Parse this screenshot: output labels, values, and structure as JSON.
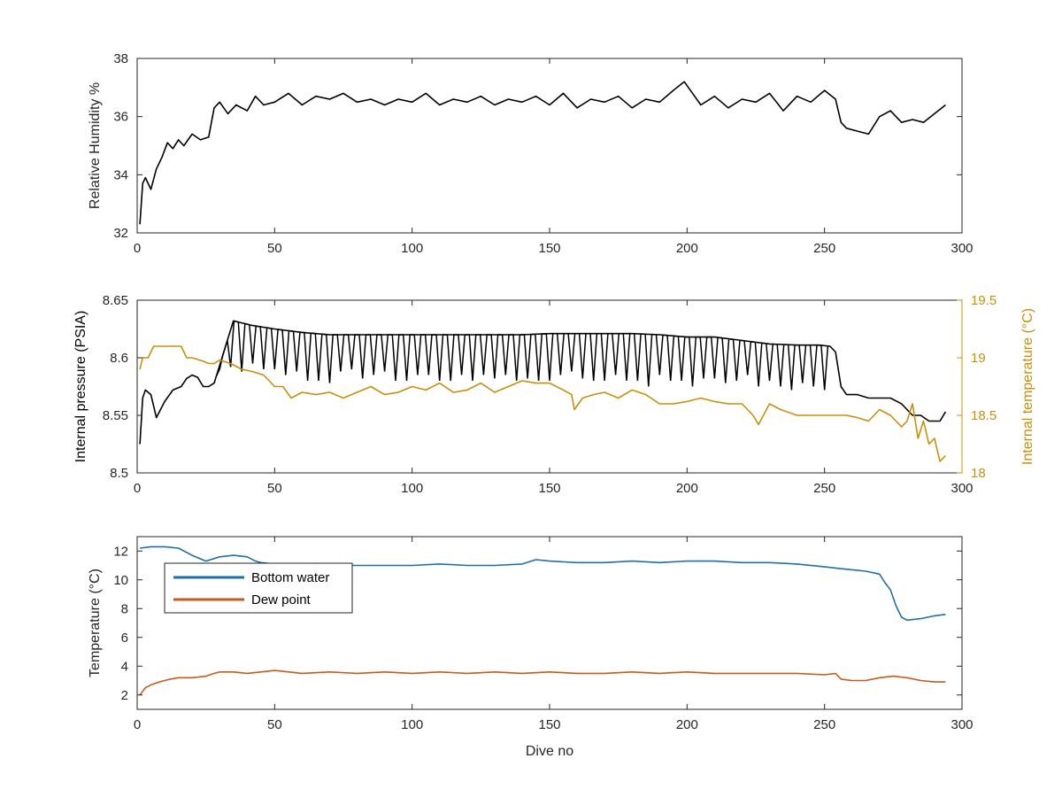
{
  "chart_data": [
    {
      "type": "line",
      "xlabel": "",
      "ylabel": "Relative Humidity %",
      "xlim": [
        0,
        300
      ],
      "ylim": [
        32,
        38
      ],
      "xticks": [
        0,
        50,
        100,
        150,
        200,
        250,
        300
      ],
      "yticks": [
        32,
        34,
        36,
        38
      ],
      "grid": false,
      "series": [
        {
          "color": "#000000",
          "x": [
            1,
            2,
            3,
            5,
            7,
            9,
            11,
            13,
            15,
            17,
            20,
            23,
            26,
            28,
            30,
            33,
            36,
            40,
            43,
            46,
            50,
            55,
            60,
            65,
            70,
            75,
            80,
            85,
            90,
            95,
            100,
            105,
            110,
            115,
            120,
            125,
            130,
            135,
            140,
            145,
            150,
            155,
            160,
            165,
            170,
            175,
            180,
            185,
            190,
            195,
            199,
            205,
            210,
            215,
            220,
            225,
            230,
            235,
            240,
            245,
            250,
            254,
            256,
            258,
            262,
            266,
            270,
            274,
            278,
            282,
            286,
            290,
            294
          ],
          "values": [
            32.3,
            33.7,
            33.9,
            33.5,
            34.2,
            34.6,
            35.1,
            34.9,
            35.2,
            35.0,
            35.4,
            35.2,
            35.3,
            36.3,
            36.5,
            36.1,
            36.4,
            36.2,
            36.7,
            36.4,
            36.5,
            36.8,
            36.4,
            36.7,
            36.6,
            36.8,
            36.5,
            36.6,
            36.4,
            36.6,
            36.5,
            36.8,
            36.4,
            36.6,
            36.5,
            36.7,
            36.4,
            36.6,
            36.5,
            36.7,
            36.4,
            36.8,
            36.3,
            36.6,
            36.5,
            36.7,
            36.3,
            36.6,
            36.5,
            36.9,
            37.2,
            36.4,
            36.7,
            36.3,
            36.6,
            36.5,
            36.8,
            36.2,
            36.7,
            36.5,
            36.9,
            36.6,
            35.8,
            35.6,
            35.5,
            35.4,
            36.0,
            36.2,
            35.8,
            35.9,
            35.8,
            36.1,
            36.4
          ]
        }
      ]
    },
    {
      "type": "line",
      "xlabel": "",
      "ylabel": "Internal pressure (PSIA)",
      "ylabel_right": "Internal temperature (°C)",
      "xlim": [
        0,
        300
      ],
      "ylim": [
        8.5,
        8.65
      ],
      "ylim_right": [
        18,
        19.5
      ],
      "xticks": [
        0,
        50,
        100,
        150,
        200,
        250,
        300
      ],
      "yticks": [
        8.5,
        8.55,
        8.6,
        8.65
      ],
      "yticks_right": [
        18,
        18.5,
        19,
        19.5
      ],
      "grid": false,
      "series": [
        {
          "axis": "left",
          "color": "#000000",
          "x": [
            1,
            2,
            3,
            5,
            7,
            10,
            13,
            16,
            18,
            20,
            22,
            24,
            26,
            28,
            35,
            42,
            50,
            60,
            70,
            80,
            90,
            100,
            110,
            120,
            130,
            140,
            150,
            160,
            170,
            180,
            190,
            200,
            210,
            220,
            230,
            240,
            248,
            252,
            254,
            256,
            258,
            262,
            266,
            270,
            274,
            278,
            282,
            285,
            288,
            292,
            294
          ],
          "values": [
            8.525,
            8.565,
            8.572,
            8.568,
            8.548,
            8.562,
            8.572,
            8.575,
            8.582,
            8.585,
            8.583,
            8.575,
            8.575,
            8.578,
            8.632,
            8.628,
            8.625,
            8.622,
            8.62,
            8.62,
            8.62,
            8.62,
            8.62,
            8.62,
            8.62,
            8.62,
            8.621,
            8.621,
            8.621,
            8.621,
            8.62,
            8.618,
            8.618,
            8.615,
            8.612,
            8.611,
            8.611,
            8.61,
            8.605,
            8.575,
            8.568,
            8.568,
            8.565,
            8.565,
            8.565,
            8.56,
            8.55,
            8.55,
            8.545,
            8.545,
            8.553
          ]
        },
        {
          "axis": "left",
          "name_hidden": true,
          "color": "#000000",
          "dip_series": true,
          "x": [
            30,
            34,
            38,
            42,
            46,
            50,
            54,
            58,
            62,
            66,
            70,
            74,
            78,
            82,
            86,
            90,
            94,
            98,
            102,
            106,
            110,
            114,
            118,
            122,
            126,
            130,
            134,
            138,
            142,
            146,
            150,
            154,
            158,
            162,
            166,
            170,
            174,
            178,
            182,
            186,
            190,
            194,
            198,
            202,
            206,
            210,
            214,
            218,
            222,
            226,
            230,
            234,
            238,
            242,
            246,
            250
          ],
          "values": [
            8.59,
            8.592,
            8.588,
            8.595,
            8.59,
            8.59,
            8.585,
            8.588,
            8.58,
            8.58,
            8.578,
            8.588,
            8.59,
            8.582,
            8.585,
            8.588,
            8.58,
            8.58,
            8.585,
            8.585,
            8.58,
            8.58,
            8.585,
            8.58,
            8.585,
            8.582,
            8.585,
            8.58,
            8.582,
            8.58,
            8.58,
            8.585,
            8.588,
            8.582,
            8.58,
            8.58,
            8.585,
            8.58,
            8.58,
            8.575,
            8.585,
            8.58,
            8.58,
            8.575,
            8.582,
            8.582,
            8.578,
            8.58,
            8.585,
            8.575,
            8.58,
            8.575,
            8.572,
            8.578,
            8.575,
            8.572
          ]
        },
        {
          "axis": "right",
          "color": "#c8900a",
          "x": [
            1,
            2,
            4,
            6,
            8,
            12,
            16,
            18,
            20,
            24,
            26,
            28,
            30,
            34,
            38,
            42,
            46,
            48,
            50,
            53,
            56,
            60,
            65,
            70,
            75,
            80,
            85,
            90,
            95,
            100,
            105,
            110,
            115,
            120,
            125,
            130,
            135,
            140,
            145,
            150,
            155,
            158,
            159,
            162,
            166,
            170,
            175,
            180,
            185,
            190,
            195,
            200,
            205,
            210,
            215,
            220,
            224,
            226,
            230,
            234,
            240,
            246,
            250,
            254,
            258,
            262,
            266,
            270,
            274,
            278,
            280,
            282,
            284,
            286,
            288,
            290,
            292,
            294
          ],
          "values": [
            18.9,
            19.0,
            19.0,
            19.1,
            19.1,
            19.1,
            19.1,
            19.0,
            19.0,
            18.97,
            18.95,
            18.95,
            18.98,
            18.95,
            18.9,
            18.88,
            18.85,
            18.8,
            18.75,
            18.75,
            18.65,
            18.7,
            18.68,
            18.7,
            18.65,
            18.7,
            18.75,
            18.68,
            18.7,
            18.75,
            18.72,
            18.78,
            18.7,
            18.72,
            18.78,
            18.7,
            18.75,
            18.8,
            18.78,
            18.78,
            18.72,
            18.68,
            18.55,
            18.65,
            18.68,
            18.7,
            18.65,
            18.72,
            18.68,
            18.6,
            18.6,
            18.62,
            18.65,
            18.62,
            18.6,
            18.6,
            18.5,
            18.42,
            18.6,
            18.55,
            18.5,
            18.5,
            18.5,
            18.5,
            18.5,
            18.48,
            18.45,
            18.55,
            18.5,
            18.4,
            18.45,
            18.6,
            18.3,
            18.45,
            18.25,
            18.3,
            18.1,
            18.15
          ]
        }
      ]
    },
    {
      "type": "line",
      "xlabel": "Dive no",
      "ylabel": "Temperature (°C)",
      "xlim": [
        0,
        300
      ],
      "ylim": [
        1,
        13
      ],
      "xticks": [
        0,
        50,
        100,
        150,
        200,
        250,
        300
      ],
      "yticks": [
        2,
        4,
        6,
        8,
        10,
        12
      ],
      "grid": false,
      "legend": "top-left",
      "series": [
        {
          "name": "Bottom water",
          "color": "#1f6fa8",
          "x": [
            1,
            5,
            10,
            15,
            20,
            25,
            30,
            35,
            40,
            43,
            45,
            50,
            60,
            70,
            80,
            90,
            100,
            110,
            120,
            130,
            140,
            145,
            150,
            160,
            170,
            180,
            190,
            200,
            210,
            220,
            230,
            240,
            250,
            255,
            260,
            265,
            270,
            272,
            274,
            276,
            278,
            280,
            285,
            290,
            294
          ],
          "values": [
            12.2,
            12.3,
            12.3,
            12.2,
            11.7,
            11.3,
            11.6,
            11.7,
            11.6,
            11.3,
            11.2,
            11.1,
            11.1,
            11.0,
            11.0,
            11.0,
            11.0,
            11.1,
            11.0,
            11.0,
            11.1,
            11.4,
            11.3,
            11.2,
            11.2,
            11.3,
            11.2,
            11.3,
            11.3,
            11.2,
            11.2,
            11.1,
            10.9,
            10.8,
            10.7,
            10.6,
            10.4,
            9.8,
            9.3,
            8.2,
            7.4,
            7.2,
            7.3,
            7.5,
            7.6
          ]
        },
        {
          "name": "Dew point",
          "color": "#c85a1e",
          "x": [
            1,
            3,
            5,
            8,
            12,
            15,
            20,
            25,
            28,
            30,
            35,
            40,
            45,
            50,
            60,
            70,
            80,
            90,
            100,
            110,
            120,
            130,
            140,
            150,
            160,
            170,
            180,
            190,
            200,
            210,
            220,
            230,
            240,
            250,
            254,
            256,
            260,
            265,
            270,
            275,
            280,
            285,
            290,
            294
          ],
          "values": [
            2.0,
            2.5,
            2.7,
            2.9,
            3.1,
            3.2,
            3.2,
            3.3,
            3.5,
            3.6,
            3.6,
            3.5,
            3.6,
            3.7,
            3.5,
            3.6,
            3.5,
            3.6,
            3.5,
            3.6,
            3.5,
            3.6,
            3.5,
            3.6,
            3.5,
            3.5,
            3.6,
            3.5,
            3.6,
            3.5,
            3.5,
            3.5,
            3.5,
            3.4,
            3.5,
            3.1,
            3.0,
            3.0,
            3.2,
            3.3,
            3.2,
            3.0,
            2.9,
            2.9
          ]
        }
      ]
    }
  ]
}
